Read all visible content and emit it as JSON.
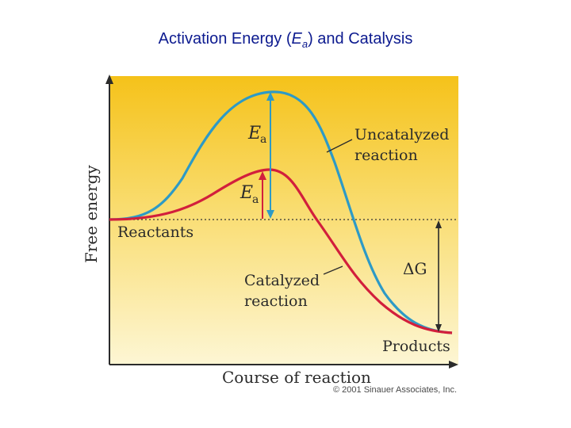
{
  "title": {
    "prefix": "Activation Energy (",
    "symbol": "E",
    "subscript": "a",
    "suffix": ") and Catalysis"
  },
  "axes": {
    "y_label": "Free energy",
    "x_label": "Course of reaction"
  },
  "labels": {
    "uncatalyzed_line1": "Uncatalyzed",
    "uncatalyzed_line2": "reaction",
    "catalyzed_line1": "Catalyzed",
    "catalyzed_line2": "reaction",
    "reactants": "Reactants",
    "products": "Products",
    "ea_symbol": "E",
    "ea_subscript": "a",
    "delta_g": "ΔG"
  },
  "copyright": "© 2001 Sinauer Associates, Inc.",
  "colors": {
    "uncatalyzed_curve": "#2d9ac6",
    "catalyzed_curve": "#d21f3c",
    "background_top": "#f5c21a",
    "background_bottom": "#fdf4c8"
  }
}
